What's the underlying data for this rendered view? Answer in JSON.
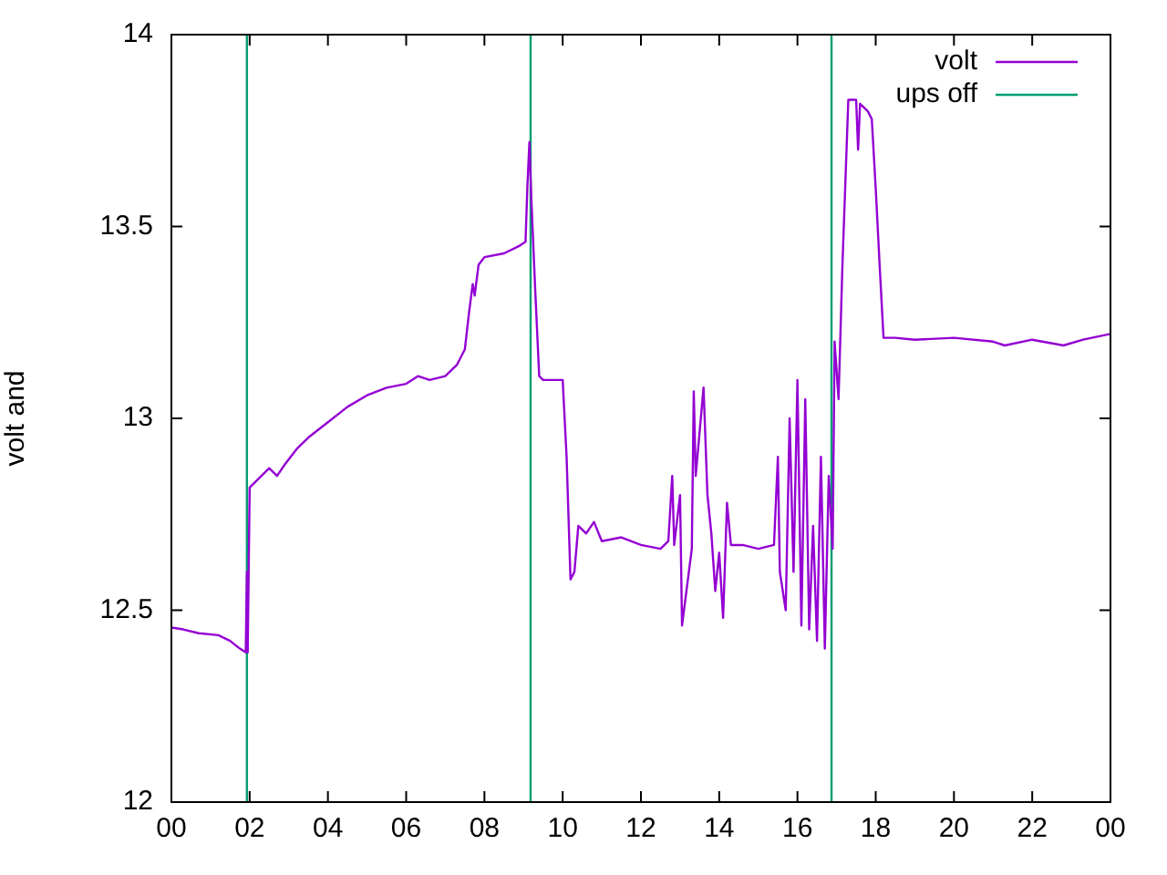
{
  "chart_data": {
    "type": "line",
    "ylabel": "volt and",
    "xlim": [
      0,
      24
    ],
    "xticks": [
      {
        "value": 0,
        "label": "00"
      },
      {
        "value": 2,
        "label": "02"
      },
      {
        "value": 4,
        "label": "04"
      },
      {
        "value": 6,
        "label": "06"
      },
      {
        "value": 8,
        "label": "08"
      },
      {
        "value": 10,
        "label": "10"
      },
      {
        "value": 12,
        "label": "12"
      },
      {
        "value": 14,
        "label": "14"
      },
      {
        "value": 16,
        "label": "16"
      },
      {
        "value": 18,
        "label": "18"
      },
      {
        "value": 20,
        "label": "20"
      },
      {
        "value": 22,
        "label": "22"
      },
      {
        "value": 24,
        "label": "00"
      }
    ],
    "ylim": [
      12,
      14
    ],
    "yticks": [
      12,
      12.5,
      13,
      13.5,
      14
    ],
    "grid": false,
    "legend": "top right",
    "marker": "none",
    "line_style": "solid",
    "series": [
      {
        "name": "volt",
        "color": "#9400d3",
        "x": [
          0,
          0.3,
          0.7,
          1.2,
          1.5,
          1.75,
          1.9,
          1.93,
          1.95,
          2.0,
          2.2,
          2.5,
          2.7,
          2.9,
          3.2,
          3.5,
          4.0,
          4.5,
          5.0,
          5.5,
          6.0,
          6.3,
          6.6,
          7.0,
          7.3,
          7.5,
          7.6,
          7.7,
          7.75,
          7.85,
          8.0,
          8.5,
          8.9,
          9.05,
          9.1,
          9.15,
          9.2,
          9.3,
          9.4,
          9.5,
          10.0,
          10.1,
          10.2,
          10.3,
          10.4,
          10.6,
          10.8,
          11.0,
          11.5,
          12.0,
          12.5,
          12.7,
          12.8,
          12.85,
          13.0,
          13.05,
          13.1,
          13.3,
          13.35,
          13.4,
          13.6,
          13.7,
          13.8,
          13.9,
          14.0,
          14.1,
          14.2,
          14.3,
          14.6,
          15.0,
          15.4,
          15.5,
          15.55,
          15.7,
          15.8,
          15.9,
          16.0,
          16.1,
          16.2,
          16.3,
          16.4,
          16.5,
          16.6,
          16.7,
          16.8,
          16.9,
          16.95,
          17.05,
          17.15,
          17.3,
          17.5,
          17.55,
          17.6,
          17.8,
          17.9,
          18.0,
          18.1,
          18.2,
          18.5,
          19,
          20,
          21,
          21.3,
          22,
          22.8,
          23.3,
          24
        ],
        "values": [
          12.455,
          12.45,
          12.44,
          12.435,
          12.42,
          12.4,
          12.39,
          12.6,
          12.39,
          12.82,
          12.84,
          12.87,
          12.85,
          12.88,
          12.92,
          12.95,
          12.99,
          13.03,
          13.06,
          13.08,
          13.09,
          13.11,
          13.1,
          13.11,
          13.14,
          13.18,
          13.27,
          13.35,
          13.32,
          13.4,
          13.42,
          13.43,
          13.45,
          13.46,
          13.61,
          13.72,
          13.57,
          13.33,
          13.11,
          13.1,
          13.1,
          12.9,
          12.58,
          12.6,
          12.72,
          12.7,
          12.73,
          12.68,
          12.69,
          12.67,
          12.66,
          12.68,
          12.85,
          12.67,
          12.8,
          12.46,
          12.5,
          12.66,
          13.07,
          12.85,
          13.08,
          12.8,
          12.7,
          12.55,
          12.65,
          12.48,
          12.78,
          12.67,
          12.67,
          12.66,
          12.67,
          12.9,
          12.6,
          12.5,
          13.0,
          12.6,
          13.1,
          12.46,
          13.05,
          12.45,
          12.72,
          12.42,
          12.9,
          12.4,
          12.85,
          12.66,
          13.2,
          13.05,
          13.4,
          13.83,
          13.83,
          13.7,
          13.82,
          13.8,
          13.78,
          13.6,
          13.4,
          13.21,
          13.21,
          13.205,
          13.21,
          13.2,
          13.19,
          13.205,
          13.19,
          13.205,
          13.22
        ]
      },
      {
        "name": "ups off",
        "color": "#009e73",
        "x": [
          1.93,
          1.93,
          1.94,
          9.18,
          9.18,
          9.19,
          16.87,
          16.87
        ],
        "values": [
          12,
          14,
          null,
          12,
          14,
          null,
          12,
          14
        ]
      }
    ]
  }
}
